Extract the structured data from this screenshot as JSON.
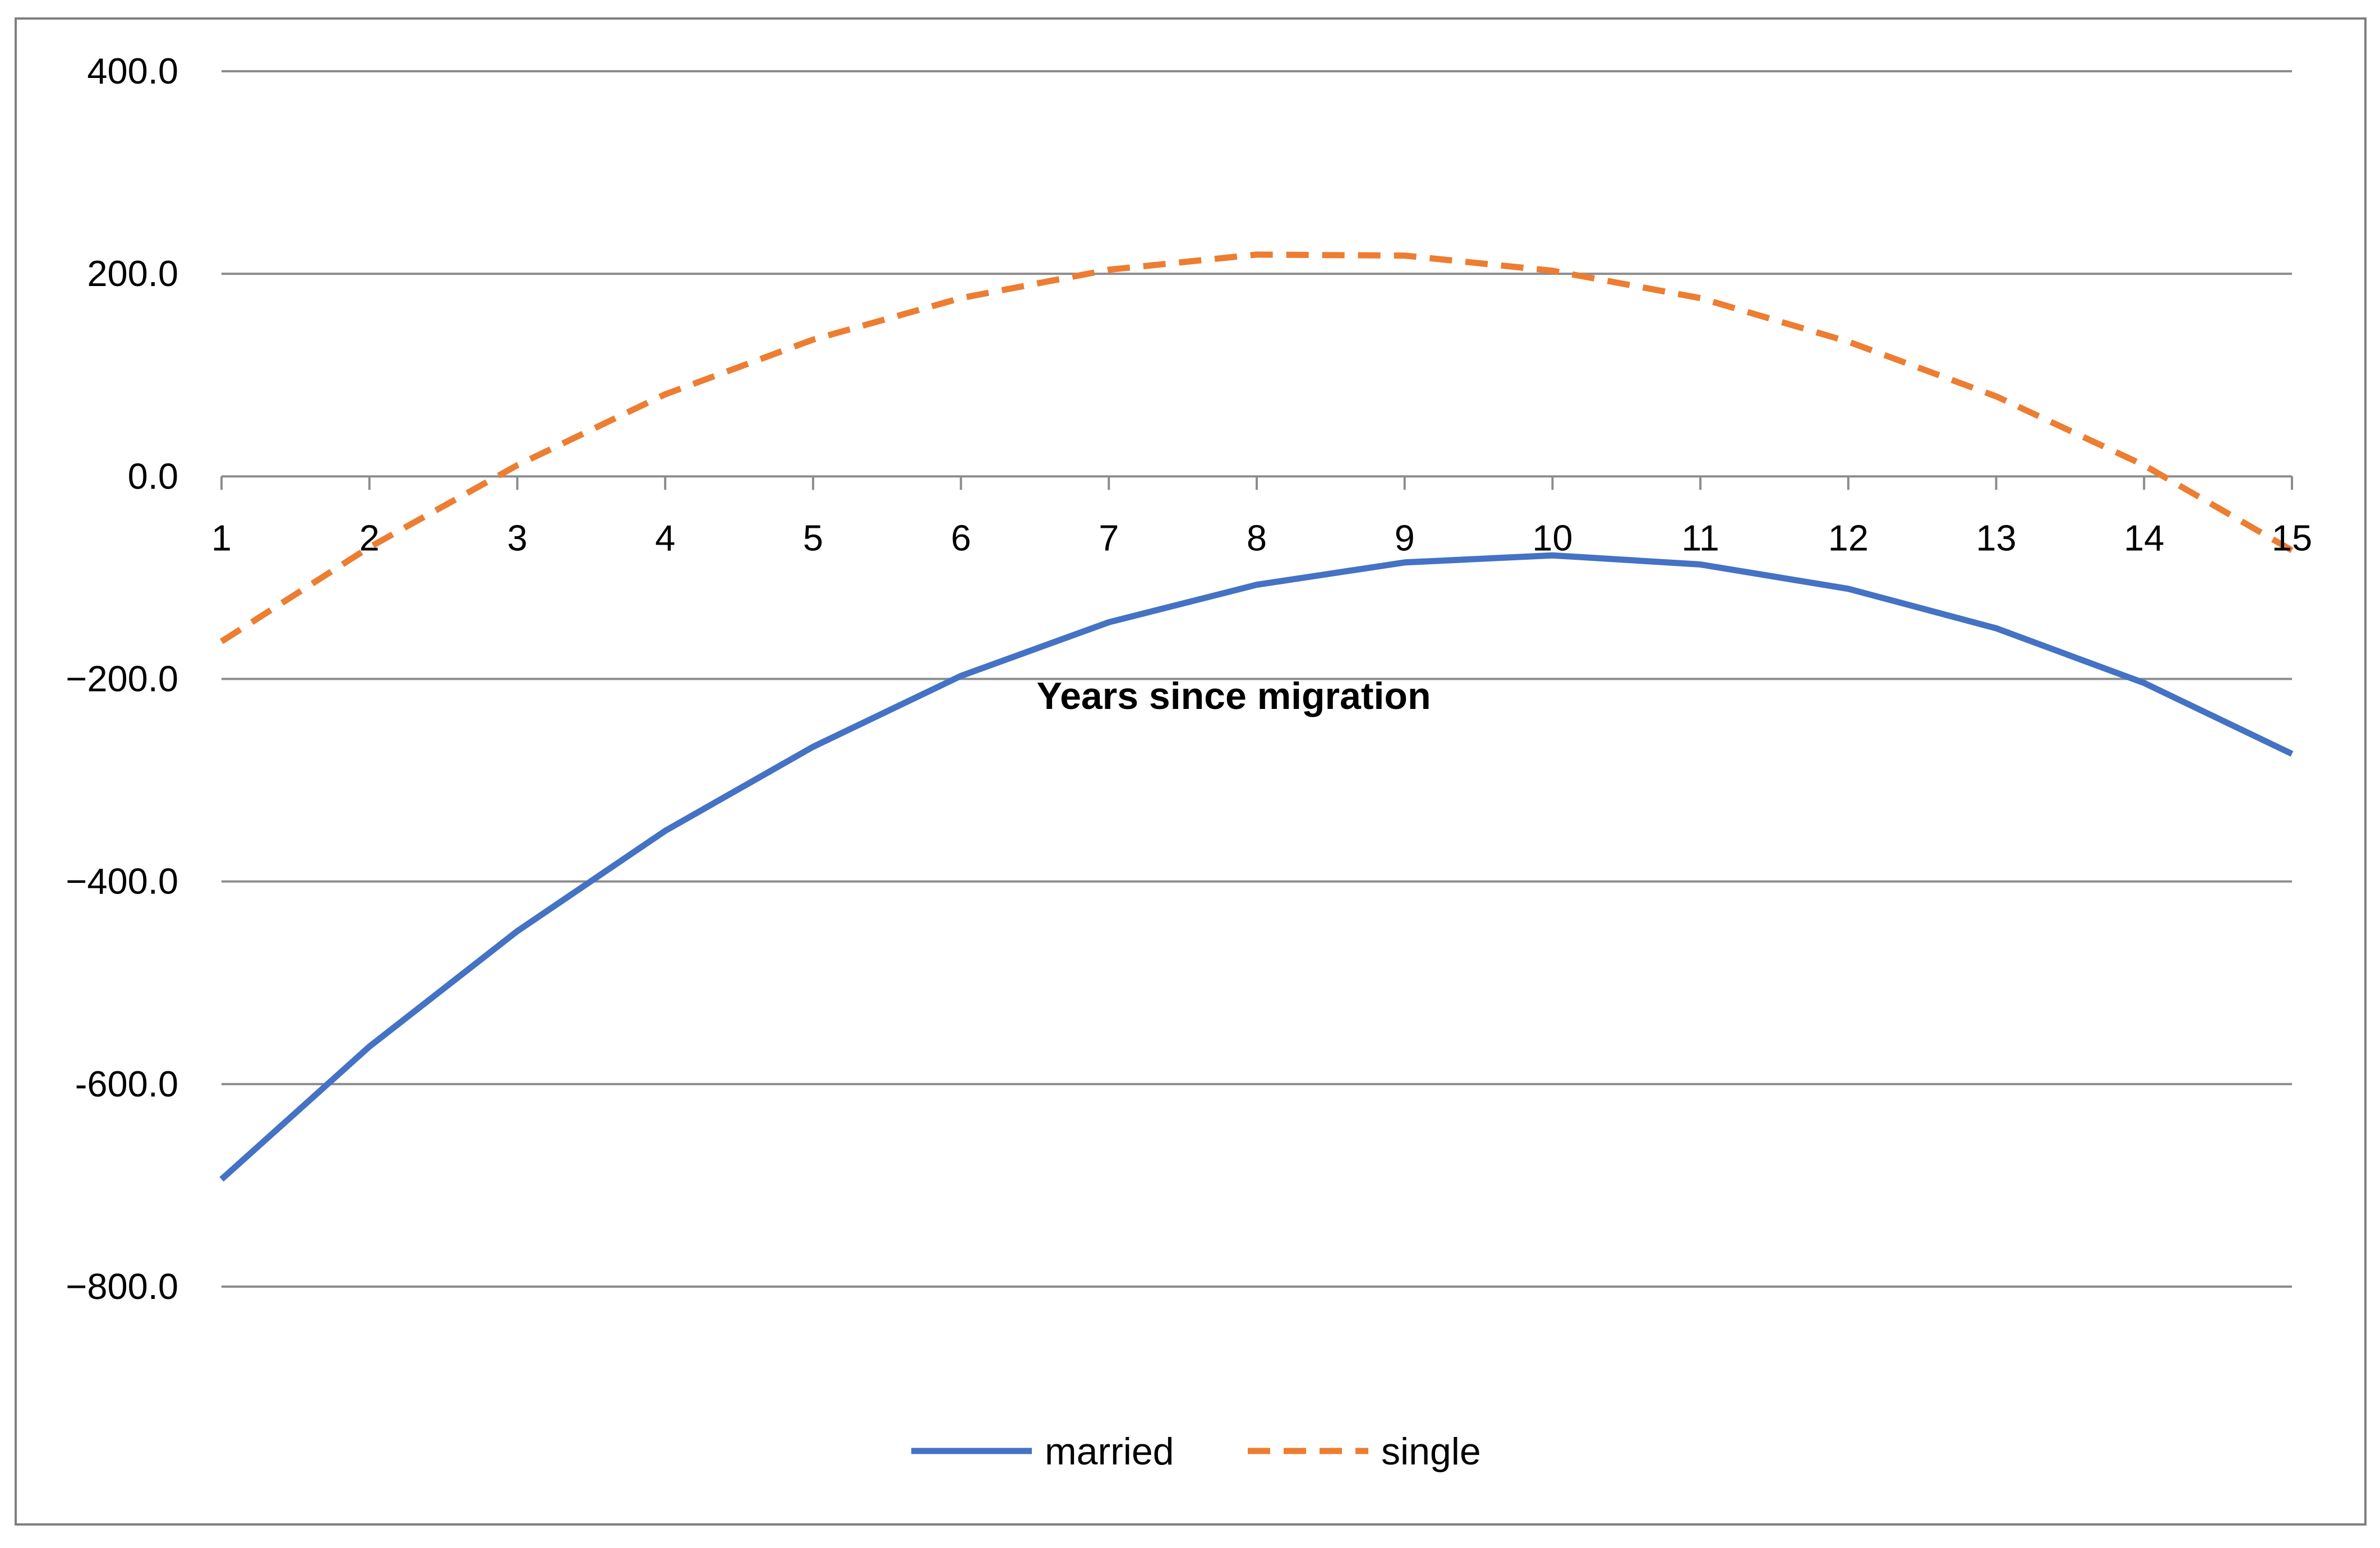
{
  "chart_data": {
    "type": "line",
    "title": "",
    "xlabel": "Years since migration",
    "ylabel": "",
    "categories": [
      "1",
      "2",
      "3",
      "4",
      "5",
      "6",
      "7",
      "8",
      "9",
      "10",
      "11",
      "12",
      "13",
      "14",
      "15"
    ],
    "ylim": [
      -800,
      400
    ],
    "yticks": [
      400,
      200,
      0,
      -200,
      -400,
      -600,
      -800
    ],
    "ytick_labels": [
      "400.0",
      "200.0",
      "0.0",
      "−200.0",
      "−400.0",
      "-600.0",
      "−800.0"
    ],
    "grid": "horizontal",
    "legend_position": "bottom",
    "series": [
      {
        "name": "married",
        "style": "solid",
        "color": "#4472C4",
        "values": [
          -694,
          -563,
          -449,
          -350,
          -267,
          -197,
          -144,
          -107,
          -85,
          -78,
          -87,
          -111,
          -150,
          -204,
          -274
        ]
      },
      {
        "name": "single",
        "style": "dashed",
        "color": "#ED7D31",
        "values": [
          -163,
          -70,
          11,
          81,
          135,
          176,
          204,
          219,
          218,
          203,
          176,
          133,
          79,
          11,
          -73
        ]
      }
    ]
  }
}
